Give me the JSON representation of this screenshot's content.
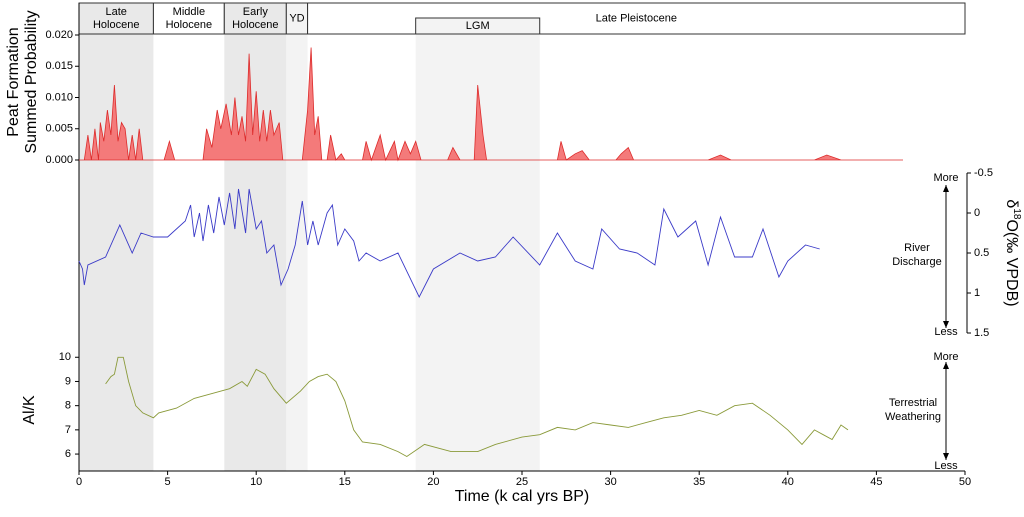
{
  "chart_data": [
    {
      "type": "area",
      "ylabel": [
        "Peat Formation",
        "Summed Probability"
      ],
      "color": "#f47a7a",
      "line_color": "#dd2b2b",
      "xlim": [
        0,
        50
      ],
      "ylim": [
        0,
        0.02
      ],
      "yticks": [
        {
          "value": 0,
          "label": "0.000"
        },
        {
          "value": 0.005,
          "label": "0.005"
        },
        {
          "value": 0.01,
          "label": "0.010"
        },
        {
          "value": 0.015,
          "label": "0.015"
        },
        {
          "value": 0.02,
          "label": "0.020"
        }
      ],
      "periods": [
        {
          "name": [
            "Late",
            "Holocene"
          ],
          "start": 0,
          "end": 4.2,
          "shade": "#e9e9e9"
        },
        {
          "name": [
            "Middle",
            "Holocene"
          ],
          "start": 4.2,
          "end": 8.2,
          "shade": null
        },
        {
          "name": [
            "Early",
            "Holocene"
          ],
          "start": 8.2,
          "end": 11.7,
          "shade": "#e9e9e9"
        },
        {
          "name": [
            "YD"
          ],
          "start": 11.7,
          "end": 12.9,
          "shade": "#f3f3f3"
        },
        {
          "name": [
            "Late Pleistocene"
          ],
          "start": 12.9,
          "end": 50,
          "shade": null
        },
        {
          "name": [
            "LGM"
          ],
          "start": 19,
          "end": 26,
          "shade": "#f3f3f3"
        }
      ],
      "x": [
        0,
        0.3,
        0.5,
        0.7,
        0.9,
        1.1,
        1.2,
        1.4,
        1.6,
        1.8,
        2.0,
        2.2,
        2.4,
        2.6,
        2.8,
        3.0,
        3.2,
        3.4,
        3.6,
        4.8,
        5.1,
        5.4,
        7.0,
        7.2,
        7.5,
        7.8,
        8.0,
        8.3,
        8.6,
        8.8,
        9.0,
        9.2,
        9.4,
        9.6,
        9.8,
        10.0,
        10.2,
        10.4,
        10.6,
        10.8,
        11.0,
        11.3,
        11.5,
        12.6,
        12.9,
        13.1,
        13.3,
        13.5,
        13.7,
        14.0,
        14.2,
        14.5,
        14.8,
        15.0,
        16.0,
        16.2,
        16.5,
        17.0,
        17.3,
        17.8,
        18.0,
        18.4,
        18.7,
        19.0,
        19.3,
        20.8,
        21.1,
        21.5,
        22.3,
        22.5,
        22.8,
        23.0,
        27.0,
        27.2,
        27.5,
        28.0,
        28.4,
        28.8,
        30.3,
        30.6,
        31.0,
        31.3,
        35.5,
        36.2,
        36.8,
        41.5,
        42.2,
        43.0,
        46.5
      ],
      "values": [
        0,
        0,
        0.004,
        0,
        0.005,
        0,
        0.006,
        0.003,
        0.008,
        0.004,
        0.012,
        0.003,
        0.006,
        0.005,
        0,
        0.004,
        0,
        0.005,
        0,
        0,
        0.003,
        0,
        0,
        0.005,
        0.002,
        0.008,
        0.005,
        0.009,
        0.004,
        0.01,
        0.004,
        0.007,
        0.003,
        0.017,
        0.004,
        0.011,
        0.003,
        0.008,
        0.003,
        0.008,
        0.004,
        0.006,
        0,
        0,
        0.008,
        0.018,
        0.004,
        0.007,
        0,
        0,
        0.004,
        0,
        0.001,
        0,
        0,
        0.003,
        0,
        0.004,
        0,
        0.003,
        0,
        0.003,
        0.001,
        0.003,
        0,
        0,
        0.002,
        0,
        0,
        0.012,
        0.004,
        0,
        0,
        0.003,
        0,
        0.001,
        0.0015,
        0,
        0,
        0.001,
        0.002,
        0,
        0,
        0.0008,
        0,
        0,
        0.0008,
        0,
        0
      ]
    },
    {
      "type": "line",
      "color": "#3b3bc8",
      "y_inverted": true,
      "y2label": {
        "prefix": "δ",
        "sup": "18",
        "suffix": "O(‰ VPDB)"
      },
      "y2lim": [
        -0.5,
        1.5
      ],
      "y2ticks": [
        -0.5,
        0,
        0.5,
        1,
        1.5
      ],
      "annotation": [
        "River",
        "Discharge"
      ],
      "arrow_labels": [
        "More",
        "Less"
      ],
      "x": [
        0,
        0.2,
        0.3,
        0.5,
        1.5,
        2.3,
        3.0,
        3.5,
        4.2,
        5.0,
        6.0,
        6.3,
        6.5,
        6.8,
        7.0,
        7.3,
        7.6,
        7.9,
        8.2,
        8.5,
        8.8,
        9.0,
        9.4,
        9.6,
        10.0,
        10.3,
        10.6,
        11.0,
        11.4,
        11.8,
        12.2,
        12.6,
        12.9,
        13.2,
        13.5,
        14.0,
        14.3,
        14.6,
        15.0,
        15.5,
        15.8,
        16.2,
        17.0,
        18.0,
        19.2,
        20.0,
        21.5,
        22.5,
        23.5,
        24.5,
        26.0,
        27.0,
        28.0,
        29.0,
        29.5,
        30.5,
        31.5,
        32.5,
        33.0,
        33.8,
        34.8,
        35.5,
        36.2,
        37.0,
        38.0,
        38.6,
        39.5,
        40.0,
        41.0,
        41.8
      ],
      "values": [
        0.6,
        0.7,
        0.9,
        0.65,
        0.55,
        0.15,
        0.5,
        0.25,
        0.3,
        0.3,
        0.1,
        -0.1,
        0.3,
        0,
        0.35,
        -0.1,
        0.25,
        -0.2,
        0.15,
        -0.25,
        0.2,
        -0.3,
        0.25,
        -0.3,
        0.2,
        0.1,
        0.5,
        0.4,
        0.9,
        0.7,
        0.4,
        -0.15,
        0.4,
        0.1,
        0.4,
        0,
        -0.1,
        0.4,
        0.2,
        0.35,
        0.6,
        0.5,
        0.6,
        0.5,
        1.05,
        0.7,
        0.5,
        0.6,
        0.55,
        0.3,
        0.65,
        0.25,
        0.6,
        0.7,
        0.2,
        0.45,
        0.5,
        0.65,
        -0.05,
        0.3,
        0.1,
        0.65,
        0.05,
        0.55,
        0.55,
        0.2,
        0.8,
        0.6,
        0.4,
        0.45
      ]
    },
    {
      "type": "line",
      "color": "#8a9a3a",
      "ylabel": "Al/K",
      "xlabel": "Time (k cal yrs BP)",
      "ylim": [
        5.3,
        10.3
      ],
      "yticks": [
        6,
        7,
        8,
        9,
        10
      ],
      "xticks": [
        0,
        5,
        10,
        15,
        20,
        25,
        30,
        35,
        40,
        45,
        50
      ],
      "annotation": [
        "Terrestrial",
        "Weathering"
      ],
      "arrow_labels": [
        "More",
        "Less"
      ],
      "x": [
        1.5,
        1.8,
        2.0,
        2.2,
        2.5,
        2.8,
        3.2,
        3.6,
        4.2,
        4.5,
        5.5,
        6.5,
        7.5,
        8.5,
        9.2,
        9.5,
        10.0,
        10.5,
        11.0,
        11.7,
        12.5,
        13.0,
        13.5,
        14.0,
        14.5,
        15.0,
        15.5,
        16.0,
        17.0,
        18.0,
        18.5,
        19.5,
        21.0,
        22.5,
        23.5,
        25.0,
        26.0,
        27.0,
        28.0,
        29.0,
        30.0,
        31.0,
        32.0,
        33.0,
        34.0,
        35.0,
        36.0,
        37.0,
        38.0,
        39.0,
        40.0,
        40.8,
        41.5,
        42.0,
        42.5,
        43.0,
        43.4
      ],
      "values": [
        8.9,
        9.2,
        9.3,
        10,
        10,
        9,
        8,
        7.7,
        7.5,
        7.7,
        7.9,
        8.3,
        8.5,
        8.7,
        9.0,
        8.8,
        9.5,
        9.3,
        8.7,
        8.1,
        8.6,
        9.0,
        9.2,
        9.3,
        9.0,
        8.2,
        7.0,
        6.5,
        6.4,
        6.1,
        5.9,
        6.4,
        6.1,
        6.1,
        6.4,
        6.7,
        6.8,
        7.1,
        7.0,
        7.3,
        7.2,
        7.1,
        7.3,
        7.5,
        7.6,
        7.8,
        7.6,
        8.0,
        8.1,
        7.6,
        7.0,
        6.4,
        7.0,
        6.8,
        6.6,
        7.2,
        7.0
      ]
    }
  ]
}
